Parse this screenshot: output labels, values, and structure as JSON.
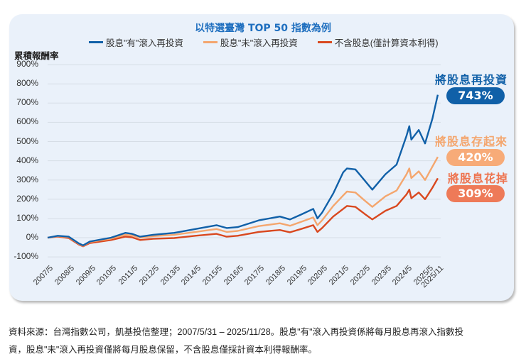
{
  "chart_data": {
    "type": "line",
    "title": "以特選臺灣 TOP 50 指數為例",
    "ylabel": "累積報酬率",
    "xlabel": "",
    "ylim": [
      -100,
      900
    ],
    "yticks": [
      "900%",
      "800%",
      "700%",
      "600%",
      "500%",
      "400%",
      "300%",
      "200%",
      "100%",
      "0%",
      "-100%"
    ],
    "xticks": [
      "2007/5",
      "2008/5",
      "2009/5",
      "2010/5",
      "2011/5",
      "2012/5",
      "2013/5",
      "2014/5",
      "2015/5",
      "2016/5",
      "2017/5",
      "2018/5",
      "2019/5",
      "2020/5",
      "2021/5",
      "2022/5",
      "2023/5",
      "2024/5",
      "2025/5",
      "2025/11"
    ],
    "grid": true,
    "legend_position": "top",
    "x": [
      2007.42,
      2007.9,
      2008.42,
      2008.9,
      2009.1,
      2009.42,
      2010.42,
      2011.1,
      2011.42,
      2011.8,
      2012.42,
      2013.42,
      2014.42,
      2015.42,
      2015.9,
      2016.42,
      2017.42,
      2018.42,
      2018.9,
      2019.42,
      2020.0,
      2020.2,
      2020.42,
      2020.95,
      2021.42,
      2021.6,
      2022.0,
      2022.42,
      2022.8,
      2023.42,
      2023.95,
      2024.42,
      2024.55,
      2024.65,
      2025.0,
      2025.3,
      2025.65,
      2025.9
    ],
    "series": [
      {
        "name": "股息\"有\"滾入再投資",
        "color": "#1060a8",
        "values": [
          0,
          10,
          5,
          -30,
          -40,
          -20,
          0,
          25,
          20,
          5,
          15,
          25,
          45,
          65,
          50,
          55,
          90,
          110,
          95,
          120,
          150,
          100,
          130,
          230,
          340,
          360,
          355,
          300,
          250,
          330,
          380,
          530,
          580,
          510,
          560,
          490,
          620,
          743
        ]
      },
      {
        "name": "股息\"未\"滾入再投資",
        "color": "#f4a66e",
        "values": [
          0,
          8,
          3,
          -32,
          -42,
          -22,
          -5,
          15,
          12,
          0,
          8,
          15,
          30,
          45,
          30,
          35,
          60,
          75,
          62,
          82,
          105,
          65,
          90,
          165,
          220,
          240,
          235,
          195,
          160,
          215,
          245,
          330,
          360,
          310,
          345,
          300,
          370,
          420
        ]
      },
      {
        "name": "不含股息(僅計算資本利得)",
        "color": "#d9481f",
        "values": [
          0,
          6,
          -2,
          -36,
          -45,
          -28,
          -12,
          5,
          2,
          -12,
          -6,
          -2,
          10,
          20,
          5,
          10,
          30,
          40,
          28,
          45,
          65,
          30,
          50,
          110,
          150,
          165,
          160,
          125,
          95,
          140,
          165,
          225,
          250,
          205,
          235,
          200,
          260,
          309
        ]
      }
    ],
    "annotations": [
      {
        "label": "將股息再投資",
        "value": "743%",
        "color": "#1060a8"
      },
      {
        "label": "將股息存起來",
        "value": "420%",
        "color": "#f4a66e"
      },
      {
        "label": "將股息花掉",
        "value": "309%",
        "color": "#ee7450"
      }
    ]
  },
  "footnote": {
    "line1": "資料來源：台灣指數公司，凱基投信整理；2007/5/31 – 2025/11/28。股息\"有\"滾入再投資係將每月股息再滾入指數投",
    "line2": "資，股息\"未\"滾入再投資僅將每月股息保留，不含股息僅採計資本利得報酬率。"
  }
}
